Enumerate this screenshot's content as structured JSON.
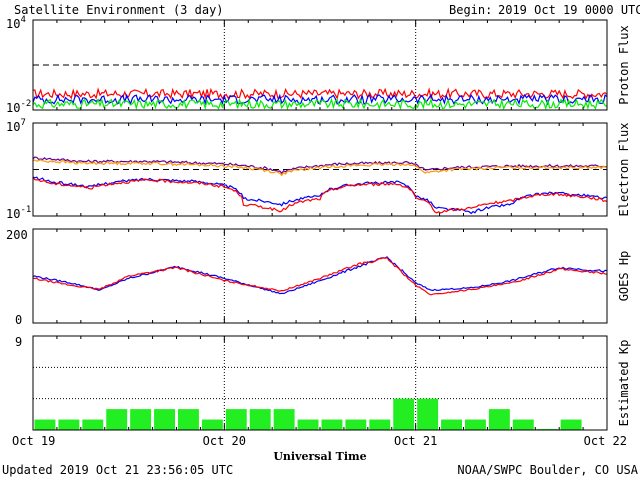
{
  "header": {
    "title": "Satellite Environment (3 day)",
    "begin_label": "Begin:",
    "begin_value": "2019 Oct 19 0000 UTC"
  },
  "footer": {
    "updated": "Updated 2019 Oct 21 23:56:05 UTC",
    "source": "NOAA/SWPC Boulder, CO USA"
  },
  "colors": {
    "red": "#ff0000",
    "blue": "#0000ff",
    "green": "#00ee00",
    "orange": "#ff9900",
    "purple": "#660099",
    "bar": "#22ee22"
  },
  "chart_data": {
    "type": "multi-panel",
    "xlabel": "Universal Time",
    "x_ticks": [
      "Oct 19",
      "Oct 20",
      "Oct 21",
      "Oct 22"
    ],
    "x_range_days": [
      0,
      3
    ],
    "panels": [
      {
        "type": "line",
        "ylabel": "Proton Flux",
        "yscale": "log",
        "ylim_exp": [
          -2,
          4
        ],
        "ytick_labels": [
          {
            "base": "10",
            "exp": "4"
          },
          {
            "base": "10",
            "exp": "-2"
          }
        ],
        "threshold": 10,
        "series": [
          {
            "color": "red",
            "level": 0.12
          },
          {
            "color": "blue",
            "level": 0.05
          },
          {
            "color": "green",
            "level": 0.025
          }
        ]
      },
      {
        "type": "line",
        "ylabel": "Electron Flux",
        "yscale": "log",
        "ylim_exp": [
          -1,
          7
        ],
        "ytick_labels": [
          {
            "base": "10",
            "exp": "7"
          },
          {
            "base": "10",
            "exp": "-1"
          }
        ],
        "threshold": 1000,
        "series": [
          {
            "color": "purple",
            "x": [
              0,
              0.25,
              0.6,
              1.0,
              1.3,
              1.6,
              1.95,
              2.05,
              2.2,
              2.5,
              3.0
            ],
            "y": [
              10000,
              5000,
              5000,
              3000,
              600,
              3000,
              4000,
              800,
              1500,
              2000,
              2000
            ]
          },
          {
            "color": "orange",
            "x": [
              0,
              0.25,
              0.6,
              1.0,
              1.3,
              1.6,
              1.95,
              2.05,
              2.2,
              2.5,
              3.0
            ],
            "y": [
              6000,
              3500,
              3500,
              2000,
              400,
              2000,
              3000,
              500,
              1000,
              1500,
              1500
            ]
          },
          {
            "color": "blue",
            "x": [
              0,
              0.1,
              0.3,
              0.6,
              0.9,
              1.1,
              1.3,
              1.5,
              1.7,
              1.9,
              2.0,
              2.1,
              2.3,
              2.5,
              2.7,
              3.0
            ],
            "y": [
              200,
              80,
              30,
              150,
              80,
              3,
              1,
              5,
              60,
              80,
              5,
              0.5,
              0.2,
              1,
              10,
              3
            ]
          },
          {
            "color": "red",
            "x": [
              0,
              0.1,
              0.3,
              0.6,
              0.9,
              1.1,
              1.3,
              1.5,
              1.7,
              1.9,
              2.0,
              2.1,
              2.3,
              2.5,
              2.7,
              3.0
            ],
            "y": [
              150,
              60,
              25,
              120,
              60,
              1,
              0.2,
              3,
              50,
              60,
              3,
              0.2,
              0.5,
              2,
              8,
              2
            ]
          }
        ]
      },
      {
        "type": "line",
        "ylabel": "GOES Hp",
        "yscale": "linear",
        "ylim": [
          0,
          200
        ],
        "ytick_labels": [
          "200",
          "0"
        ],
        "series": [
          {
            "color": "blue",
            "x": [
              0,
              0.2,
              0.35,
              0.5,
              0.75,
              1.0,
              1.3,
              1.5,
              1.7,
              1.85,
              2.0,
              2.08,
              2.3,
              2.5,
              2.75,
              3.0
            ],
            "y": [
              100,
              85,
              70,
              95,
              120,
              95,
              62,
              90,
              120,
              140,
              85,
              70,
              75,
              90,
              118,
              110
            ]
          },
          {
            "color": "red",
            "x": [
              0,
              0.2,
              0.35,
              0.5,
              0.75,
              1.0,
              1.3,
              1.5,
              1.7,
              1.85,
              2.0,
              2.08,
              2.3,
              2.5,
              2.75,
              3.0
            ],
            "y": [
              95,
              80,
              72,
              100,
              118,
              90,
              68,
              95,
              125,
              138,
              80,
              60,
              72,
              85,
              115,
              105
            ]
          }
        ]
      },
      {
        "type": "bar",
        "ylabel": "Estimated Kp",
        "ylim": [
          0,
          9
        ],
        "ytick_labels": [
          "9"
        ],
        "bar_width_hours": 3,
        "values": [
          1,
          1,
          1,
          2,
          2,
          2,
          2,
          1,
          2,
          2,
          2,
          1,
          1,
          1,
          1,
          3,
          3,
          1,
          1,
          2,
          1,
          0.1,
          1,
          0
        ]
      }
    ]
  }
}
